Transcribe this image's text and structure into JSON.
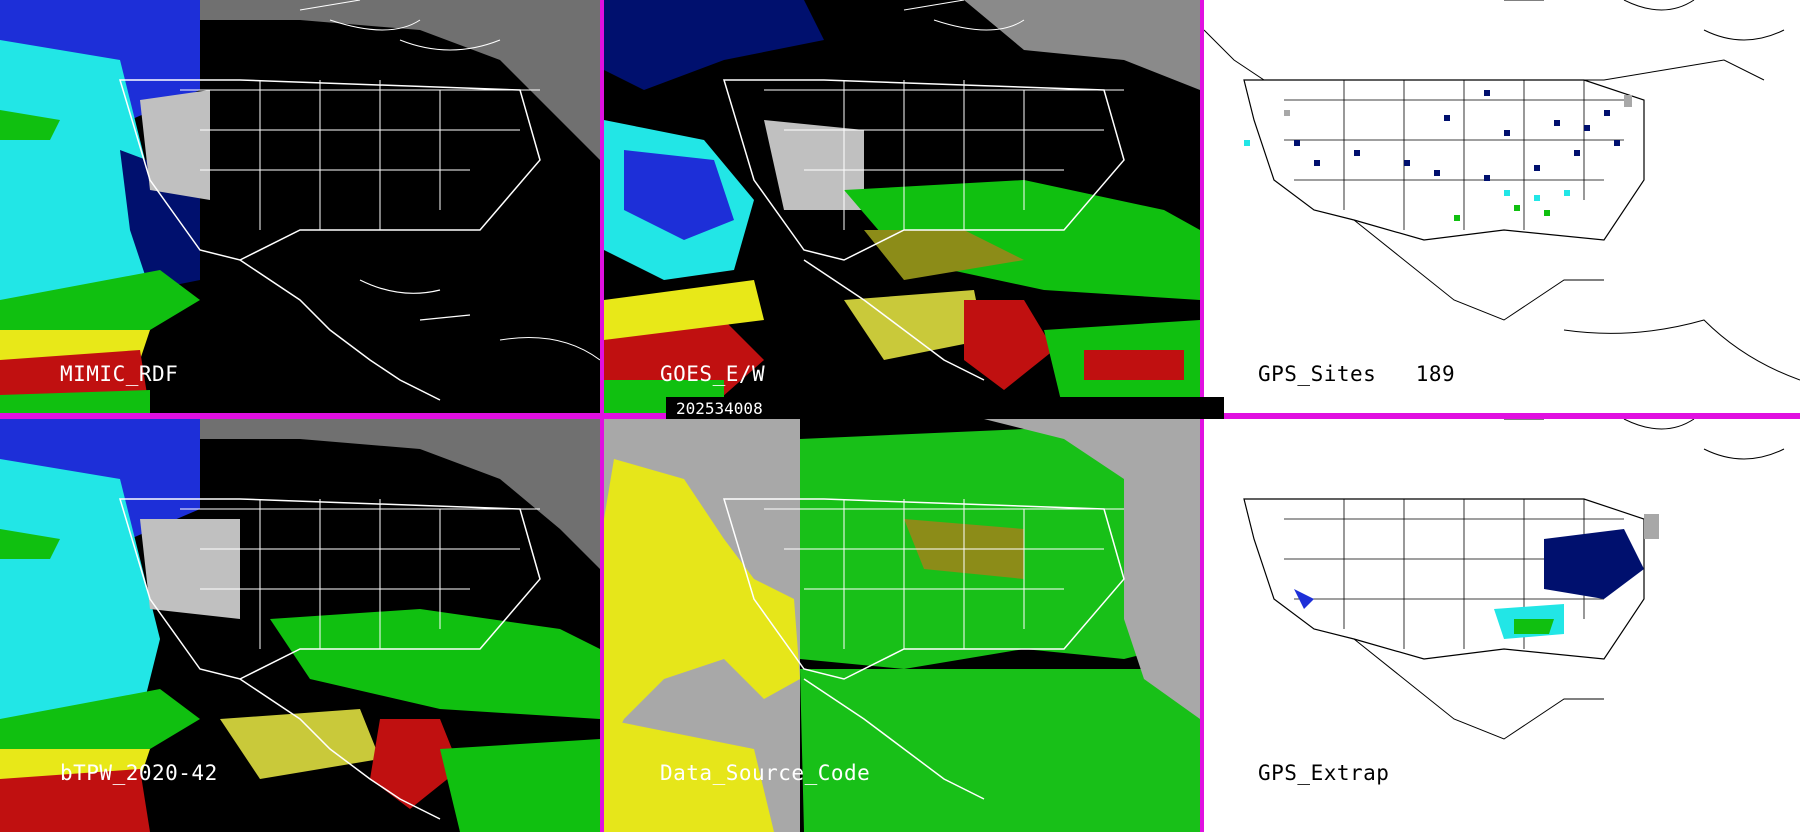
{
  "panels": {
    "mimic_rdf": {
      "label": "MIMIC_RDF"
    },
    "goes_ew": {
      "label": "GOES_E/W"
    },
    "gps_sites": {
      "label": "GPS_Sites",
      "count": "189"
    },
    "btpw": {
      "label": "bTPW_2020-42"
    },
    "data_source": {
      "label": "Data_Source_Code"
    },
    "gps_extrap": {
      "label": "GPS_Extrap"
    }
  },
  "timestamp": "202534008",
  "colors": {
    "border": "#e010e0",
    "tpw_black": "#000000",
    "tpw_navy": "#00106e",
    "tpw_blue": "#1d2fd8",
    "tpw_gray": "#c0c0c0",
    "tpw_cyan": "#22e6e6",
    "tpw_green": "#10c010",
    "tpw_olive": "#8c8c18",
    "tpw_yellow": "#e8e818",
    "tpw_red": "#c01010",
    "source_gray": "#a8a8a8",
    "source_yellow": "#e6e61a",
    "source_green": "#18c018"
  }
}
